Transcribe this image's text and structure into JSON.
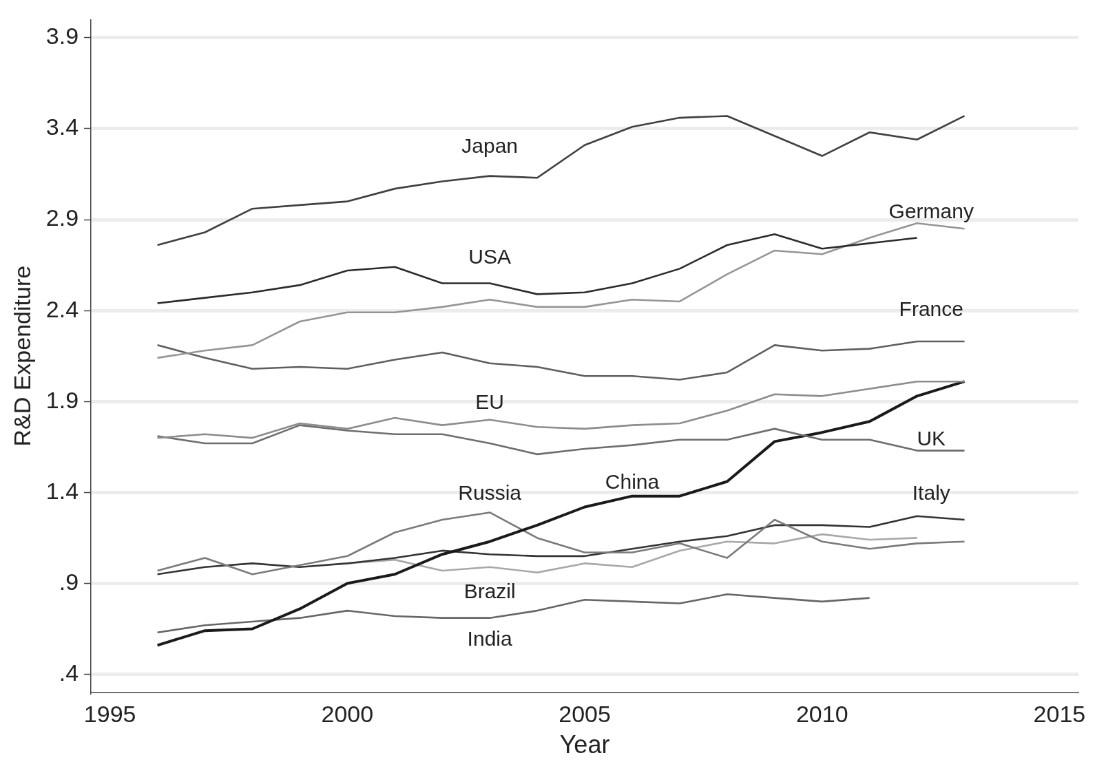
{
  "chart_data": {
    "type": "line",
    "xlabel": "Year",
    "ylabel": "R&D Expenditure",
    "xlim": [
      1994.6,
      2015.4
    ],
    "xticks": [
      1995,
      2000,
      2005,
      2010,
      2015
    ],
    "ylim": [
      0.3,
      4.0
    ],
    "yticks": [
      {
        "value": 0.4,
        "label": ".4"
      },
      {
        "value": 0.9,
        "label": ".9"
      },
      1.4,
      1.9,
      2.4,
      2.9,
      3.4,
      3.9
    ],
    "grid": "y",
    "legend": false,
    "marker": "none",
    "line_style": "solid",
    "series": [
      {
        "name": "Japan",
        "color": "#404040",
        "x": [
          1996,
          1997,
          1998,
          1999,
          2000,
          2001,
          2002,
          2003,
          2004,
          2005,
          2006,
          2007,
          2008,
          2009,
          2010,
          2011,
          2012,
          2013
        ],
        "values": [
          2.76,
          2.83,
          2.96,
          2.98,
          3.0,
          3.07,
          3.11,
          3.14,
          3.13,
          3.31,
          3.41,
          3.46,
          3.47,
          3.36,
          3.25,
          3.38,
          3.34,
          3.47
        ]
      },
      {
        "name": "USA",
        "color": "#2b2b2b",
        "x": [
          1996,
          1997,
          1998,
          1999,
          2000,
          2001,
          2002,
          2003,
          2004,
          2005,
          2006,
          2007,
          2008,
          2009,
          2010,
          2011,
          2012
        ],
        "values": [
          2.44,
          2.47,
          2.5,
          2.54,
          2.62,
          2.64,
          2.55,
          2.55,
          2.49,
          2.5,
          2.55,
          2.63,
          2.76,
          2.82,
          2.74,
          2.77,
          2.8
        ]
      },
      {
        "name": "Germany",
        "color": "#959595",
        "x": [
          1996,
          1997,
          1998,
          1999,
          2000,
          2001,
          2002,
          2003,
          2004,
          2005,
          2006,
          2007,
          2008,
          2009,
          2010,
          2011,
          2012,
          2013
        ],
        "values": [
          2.14,
          2.18,
          2.21,
          2.34,
          2.39,
          2.39,
          2.42,
          2.46,
          2.42,
          2.42,
          2.46,
          2.45,
          2.6,
          2.73,
          2.71,
          2.8,
          2.88,
          2.85
        ]
      },
      {
        "name": "France",
        "color": "#5e5e5e",
        "x": [
          1996,
          1997,
          1998,
          1999,
          2000,
          2001,
          2002,
          2003,
          2004,
          2005,
          2006,
          2007,
          2008,
          2009,
          2010,
          2011,
          2012,
          2013
        ],
        "values": [
          2.21,
          2.14,
          2.08,
          2.09,
          2.08,
          2.13,
          2.17,
          2.11,
          2.09,
          2.04,
          2.04,
          2.02,
          2.06,
          2.21,
          2.18,
          2.19,
          2.23,
          2.23
        ]
      },
      {
        "name": "EU",
        "color": "#8c8c8c",
        "x": [
          1996,
          1997,
          1998,
          1999,
          2000,
          2001,
          2002,
          2003,
          2004,
          2005,
          2006,
          2007,
          2008,
          2009,
          2010,
          2011,
          2012,
          2013
        ],
        "values": [
          1.7,
          1.72,
          1.7,
          1.78,
          1.75,
          1.81,
          1.77,
          1.8,
          1.76,
          1.75,
          1.77,
          1.78,
          1.85,
          1.94,
          1.93,
          1.97,
          2.01,
          2.01
        ]
      },
      {
        "name": "UK",
        "color": "#6e6e6e",
        "x": [
          1996,
          1997,
          1998,
          1999,
          2000,
          2001,
          2002,
          2003,
          2004,
          2005,
          2006,
          2007,
          2008,
          2009,
          2010,
          2011,
          2012,
          2013
        ],
        "values": [
          1.71,
          1.67,
          1.67,
          1.77,
          1.74,
          1.72,
          1.72,
          1.67,
          1.61,
          1.64,
          1.66,
          1.69,
          1.69,
          1.75,
          1.69,
          1.69,
          1.63,
          1.63
        ]
      },
      {
        "name": "China",
        "color": "#1a1a1a",
        "x": [
          1996,
          1997,
          1998,
          1999,
          2000,
          2001,
          2002,
          2003,
          2004,
          2005,
          2006,
          2007,
          2008,
          2009,
          2010,
          2011,
          2012,
          2013
        ],
        "values": [
          0.56,
          0.64,
          0.65,
          0.76,
          0.9,
          0.95,
          1.06,
          1.13,
          1.22,
          1.32,
          1.38,
          1.38,
          1.46,
          1.68,
          1.73,
          1.79,
          1.93,
          2.01
        ]
      },
      {
        "name": "Russia",
        "color": "#7a7a7a",
        "x": [
          1996,
          1997,
          1998,
          1999,
          2000,
          2001,
          2002,
          2003,
          2004,
          2005,
          2006,
          2007,
          2008,
          2009,
          2010,
          2011,
          2012,
          2013
        ],
        "values": [
          0.97,
          1.04,
          0.95,
          1.0,
          1.05,
          1.18,
          1.25,
          1.29,
          1.15,
          1.07,
          1.07,
          1.12,
          1.04,
          1.25,
          1.13,
          1.09,
          1.12,
          1.13
        ]
      },
      {
        "name": "Italy",
        "color": "#333333",
        "x": [
          1996,
          1997,
          1998,
          1999,
          2000,
          2001,
          2002,
          2003,
          2004,
          2005,
          2006,
          2007,
          2008,
          2009,
          2010,
          2011,
          2012,
          2013
        ],
        "values": [
          0.95,
          0.99,
          1.01,
          0.99,
          1.01,
          1.04,
          1.08,
          1.06,
          1.05,
          1.05,
          1.09,
          1.13,
          1.16,
          1.22,
          1.22,
          1.21,
          1.27,
          1.25
        ]
      },
      {
        "name": "Brazil",
        "color": "#a8a8a8",
        "x": [
          2000,
          2001,
          2002,
          2003,
          2004,
          2005,
          2006,
          2007,
          2008,
          2009,
          2010,
          2011,
          2012
        ],
        "values": [
          1.01,
          1.03,
          0.97,
          0.99,
          0.96,
          1.01,
          0.99,
          1.08,
          1.13,
          1.12,
          1.17,
          1.14,
          1.15
        ]
      },
      {
        "name": "India",
        "color": "#666666",
        "x": [
          1996,
          1997,
          1998,
          1999,
          2000,
          2001,
          2002,
          2003,
          2004,
          2005,
          2006,
          2007,
          2008,
          2009,
          2010,
          2011
        ],
        "values": [
          0.63,
          0.67,
          0.69,
          0.71,
          0.75,
          0.72,
          0.71,
          0.71,
          0.75,
          0.81,
          0.8,
          0.79,
          0.84,
          0.82,
          0.8,
          0.82
        ]
      }
    ]
  }
}
